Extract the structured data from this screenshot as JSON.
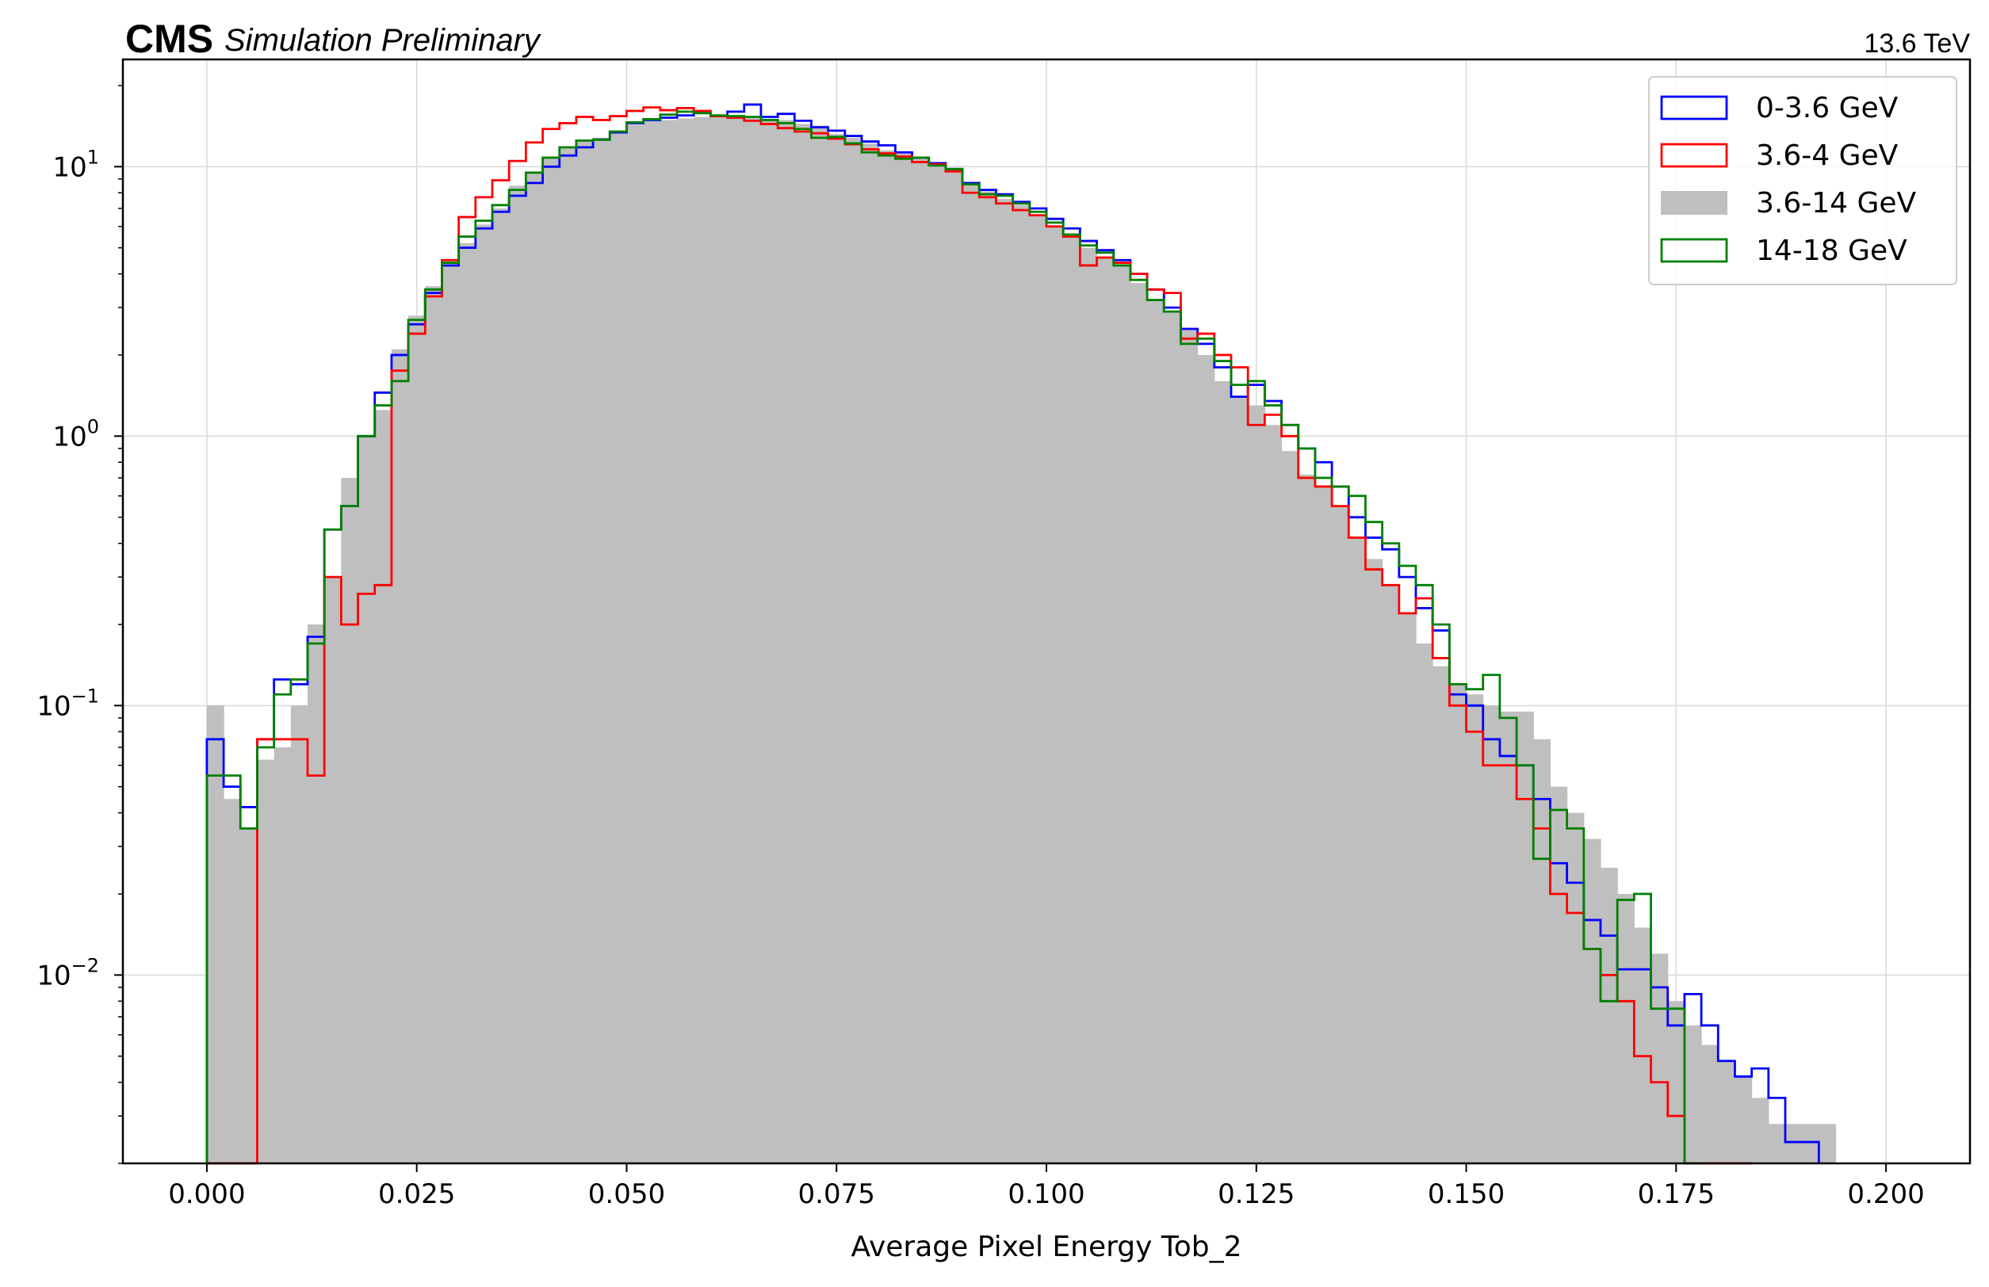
{
  "header": {
    "experiment": "CMS",
    "status": "Simulation Preliminary",
    "energy": "13.6 TeV"
  },
  "chart_data": {
    "type": "histogram",
    "xlabel": "Average Pixel Energy Tob_2",
    "ylabel": "",
    "xlim": [
      -0.01,
      0.21
    ],
    "ylim": [
      0.002,
      25
    ],
    "yscale": "log",
    "grid": true,
    "legend_position": "top-right",
    "x_ticks": [
      "0.000",
      "0.025",
      "0.050",
      "0.075",
      "0.100",
      "0.125",
      "0.150",
      "0.175",
      "0.200"
    ],
    "x_tick_values": [
      0,
      0.025,
      0.05,
      0.075,
      0.1,
      0.125,
      0.15,
      0.175,
      0.2
    ],
    "y_ticks": [
      {
        "value": 10,
        "base": "10",
        "exp": "1"
      },
      {
        "value": 1,
        "base": "10",
        "exp": "0"
      },
      {
        "value": 0.1,
        "base": "10",
        "exp": "−1"
      },
      {
        "value": 0.01,
        "base": "10",
        "exp": "−2"
      }
    ],
    "bin_start": 0,
    "bin_width": 0.002,
    "series": [
      {
        "name": "0-3.6 GeV",
        "style": "step",
        "color": "#0000ff",
        "values": [
          0.075,
          0.05,
          0.042,
          0.075,
          0.125,
          0.12,
          0.18,
          0.45,
          0.55,
          1.0,
          1.45,
          2.0,
          2.6,
          3.4,
          4.3,
          5.0,
          5.9,
          6.8,
          7.8,
          8.7,
          10.0,
          11.0,
          11.8,
          12.6,
          13.4,
          14.5,
          14.9,
          15.2,
          15.5,
          15.8,
          15.4,
          16.0,
          17.0,
          15.3,
          15.7,
          14.8,
          14.0,
          13.6,
          13.0,
          12.4,
          12.0,
          11.3,
          10.8,
          10.3,
          9.8,
          8.7,
          8.2,
          7.9,
          7.4,
          7.0,
          6.4,
          5.9,
          5.3,
          4.9,
          4.5,
          4.0,
          3.5,
          3.0,
          2.5,
          2.2,
          1.8,
          1.4,
          1.55,
          1.35,
          1.1,
          0.9,
          0.8,
          0.65,
          0.5,
          0.42,
          0.38,
          0.3,
          0.23,
          0.19,
          0.11,
          0.1,
          0.075,
          0.065,
          0.06,
          0.045,
          0.026,
          0.022,
          0.016,
          0.014,
          0.0105,
          0.0105,
          0.009,
          0.0065,
          0.0085,
          0.0065,
          0.0048,
          0.0042,
          0.0045,
          0.0035,
          0.0024,
          0.0024
        ]
      },
      {
        "name": "3.6-4 GeV",
        "style": "step",
        "color": "#ff0000",
        "values": [
          0,
          0,
          0,
          0.075,
          0.075,
          0.075,
          0.055,
          0.3,
          0.2,
          0.26,
          0.28,
          1.75,
          2.4,
          3.3,
          4.5,
          6.5,
          7.7,
          8.9,
          10.5,
          12.3,
          13.8,
          14.5,
          15.3,
          14.9,
          15.4,
          16.1,
          16.6,
          16.2,
          16.5,
          16.1,
          15.4,
          15.2,
          14.8,
          14.4,
          13.9,
          13.5,
          13.3,
          12.7,
          12.1,
          11.6,
          11.2,
          10.9,
          10.4,
          10.2,
          9.6,
          8.0,
          7.7,
          7.3,
          6.9,
          6.6,
          6.0,
          5.5,
          4.3,
          4.6,
          4.4,
          4.0,
          3.5,
          3.4,
          2.3,
          2.4,
          2.0,
          1.8,
          1.1,
          1.2,
          1.0,
          0.7,
          0.65,
          0.55,
          0.42,
          0.32,
          0.28,
          0.22,
          0.25,
          0.15,
          0.1,
          0.08,
          0.06,
          0.06,
          0.045,
          0.035,
          0.02,
          0.017,
          0.0125,
          0.01,
          0.008,
          0.005,
          0.004,
          0.003,
          0.002,
          0.002,
          0.002,
          0.002
        ]
      },
      {
        "name": "3.6-14 GeV",
        "style": "fill",
        "color": "#bfbfbf",
        "values": [
          0.1,
          0.045,
          0.035,
          0.063,
          0.07,
          0.1,
          0.2,
          0.3,
          0.7,
          1.0,
          1.25,
          2.1,
          2.8,
          3.6,
          4.3,
          5.2,
          6.1,
          7.0,
          8.5,
          9.6,
          10.7,
          11.9,
          12.5,
          12.8,
          13.6,
          14.3,
          14.8,
          14.9,
          15.1,
          15.3,
          15.3,
          15.4,
          15.2,
          15.0,
          14.9,
          14.4,
          14.2,
          13.2,
          12.8,
          12.2,
          11.5,
          11.2,
          10.7,
          10.2,
          9.5,
          8.6,
          8.1,
          7.6,
          7.2,
          6.6,
          6.0,
          5.6,
          5.0,
          4.6,
          4.3,
          3.7,
          3.2,
          2.9,
          2.5,
          2.0,
          1.6,
          1.4,
          1.3,
          1.1,
          0.88,
          0.72,
          0.65,
          0.55,
          0.42,
          0.35,
          0.28,
          0.22,
          0.17,
          0.14,
          0.12,
          0.11,
          0.1,
          0.095,
          0.095,
          0.075,
          0.05,
          0.04,
          0.032,
          0.025,
          0.02,
          0.015,
          0.012,
          0.008,
          0.0065,
          0.0055,
          0.0048,
          0.0042,
          0.0035,
          0.0028,
          0.0028,
          0.0028,
          0.0028
        ]
      },
      {
        "name": "14-18 GeV",
        "style": "step",
        "color": "#008000",
        "values": [
          0.055,
          0.055,
          0.035,
          0.07,
          0.11,
          0.125,
          0.17,
          0.45,
          0.55,
          1.0,
          1.3,
          1.6,
          2.7,
          3.5,
          4.4,
          5.5,
          6.3,
          7.2,
          8.2,
          9.5,
          10.8,
          11.8,
          12.5,
          12.6,
          13.5,
          14.6,
          15.0,
          15.6,
          16.0,
          15.8,
          15.5,
          15.4,
          15.3,
          14.9,
          14.5,
          13.8,
          12.8,
          12.9,
          12.2,
          11.3,
          11.0,
          10.7,
          10.8,
          10.1,
          9.8,
          8.6,
          7.9,
          7.8,
          7.3,
          6.8,
          6.2,
          5.6,
          5.1,
          4.8,
          4.3,
          3.8,
          3.2,
          2.9,
          2.2,
          2.3,
          1.9,
          1.55,
          1.6,
          1.3,
          1.1,
          0.9,
          0.7,
          0.65,
          0.6,
          0.48,
          0.4,
          0.33,
          0.28,
          0.2,
          0.12,
          0.115,
          0.13,
          0.09,
          0.06,
          0.027,
          0.041,
          0.035,
          0.0125,
          0.008,
          0.019,
          0.02,
          0.0075,
          0.0075,
          0.002
        ]
      }
    ]
  }
}
